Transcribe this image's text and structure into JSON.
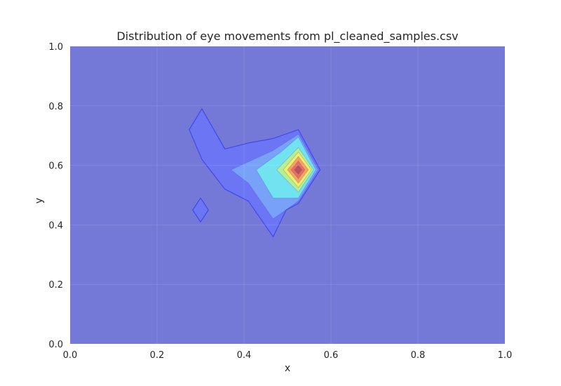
{
  "chart_data": {
    "type": "contour",
    "title": "Distribution of eye movements from pl_cleaned_samples.csv",
    "xlabel": "x",
    "ylabel": "y",
    "xlim": [
      0.0,
      1.0
    ],
    "ylim": [
      0.0,
      1.0
    ],
    "xticks": [
      "0.0",
      "0.2",
      "0.4",
      "0.6",
      "0.8",
      "1.0"
    ],
    "yticks": [
      "0.0",
      "0.2",
      "0.4",
      "0.6",
      "0.8",
      "1.0"
    ],
    "grid": true,
    "colormap": "jet",
    "colors": {
      "background_level": "#7478d6",
      "level_1": "#6b76f5",
      "level_2": "#78a4f7",
      "level_3": "#70e6ef",
      "level_4": "#b8f08a",
      "level_5": "#f6ec6a",
      "level_6": "#f5a25a",
      "level_7": "#e86a5e",
      "peak": "#b45058"
    },
    "levels": [
      {
        "level": 1,
        "regions": [
          [
            [
              0.274,
              0.72
            ],
            [
              0.303,
              0.79
            ],
            [
              0.356,
              0.655
            ],
            [
              0.41,
              0.675
            ],
            [
              0.467,
              0.69
            ],
            [
              0.525,
              0.72
            ],
            [
              0.575,
              0.585
            ],
            [
              0.525,
              0.472
            ],
            [
              0.497,
              0.45
            ],
            [
              0.467,
              0.36
            ],
            [
              0.41,
              0.48
            ],
            [
              0.356,
              0.52
            ],
            [
              0.303,
              0.62
            ]
          ],
          [
            [
              0.3,
              0.49
            ],
            [
              0.318,
              0.45
            ],
            [
              0.3,
              0.41
            ],
            [
              0.282,
              0.45
            ]
          ]
        ]
      },
      {
        "level": 2,
        "regions": [
          [
            [
              0.37,
              0.585
            ],
            [
              0.467,
              0.65
            ],
            [
              0.525,
              0.705
            ],
            [
              0.57,
              0.585
            ],
            [
              0.525,
              0.48
            ],
            [
              0.467,
              0.42
            ],
            [
              0.41,
              0.54
            ]
          ]
        ]
      },
      {
        "level": 3,
        "regions": [
          [
            [
              0.428,
              0.585
            ],
            [
              0.485,
              0.645
            ],
            [
              0.525,
              0.695
            ],
            [
              0.565,
              0.585
            ],
            [
              0.525,
              0.49
            ],
            [
              0.467,
              0.49
            ]
          ]
        ]
      },
      {
        "level": 4,
        "regions": [
          [
            [
              0.475,
              0.585
            ],
            [
              0.525,
              0.66
            ],
            [
              0.56,
              0.585
            ],
            [
              0.525,
              0.51
            ]
          ]
        ]
      },
      {
        "level": 5,
        "regions": [
          [
            [
              0.49,
              0.585
            ],
            [
              0.525,
              0.645
            ],
            [
              0.555,
              0.585
            ],
            [
              0.525,
              0.525
            ]
          ]
        ]
      },
      {
        "level": 6,
        "regions": [
          [
            [
              0.5,
              0.585
            ],
            [
              0.525,
              0.63
            ],
            [
              0.548,
              0.585
            ],
            [
              0.525,
              0.54
            ]
          ]
        ]
      },
      {
        "level": 7,
        "regions": [
          [
            [
              0.508,
              0.585
            ],
            [
              0.525,
              0.615
            ],
            [
              0.54,
              0.585
            ],
            [
              0.525,
              0.555
            ]
          ]
        ]
      },
      {
        "level": 8,
        "regions": [
          [
            [
              0.516,
              0.585
            ],
            [
              0.525,
              0.6
            ],
            [
              0.533,
              0.585
            ],
            [
              0.525,
              0.57
            ]
          ]
        ]
      }
    ]
  }
}
